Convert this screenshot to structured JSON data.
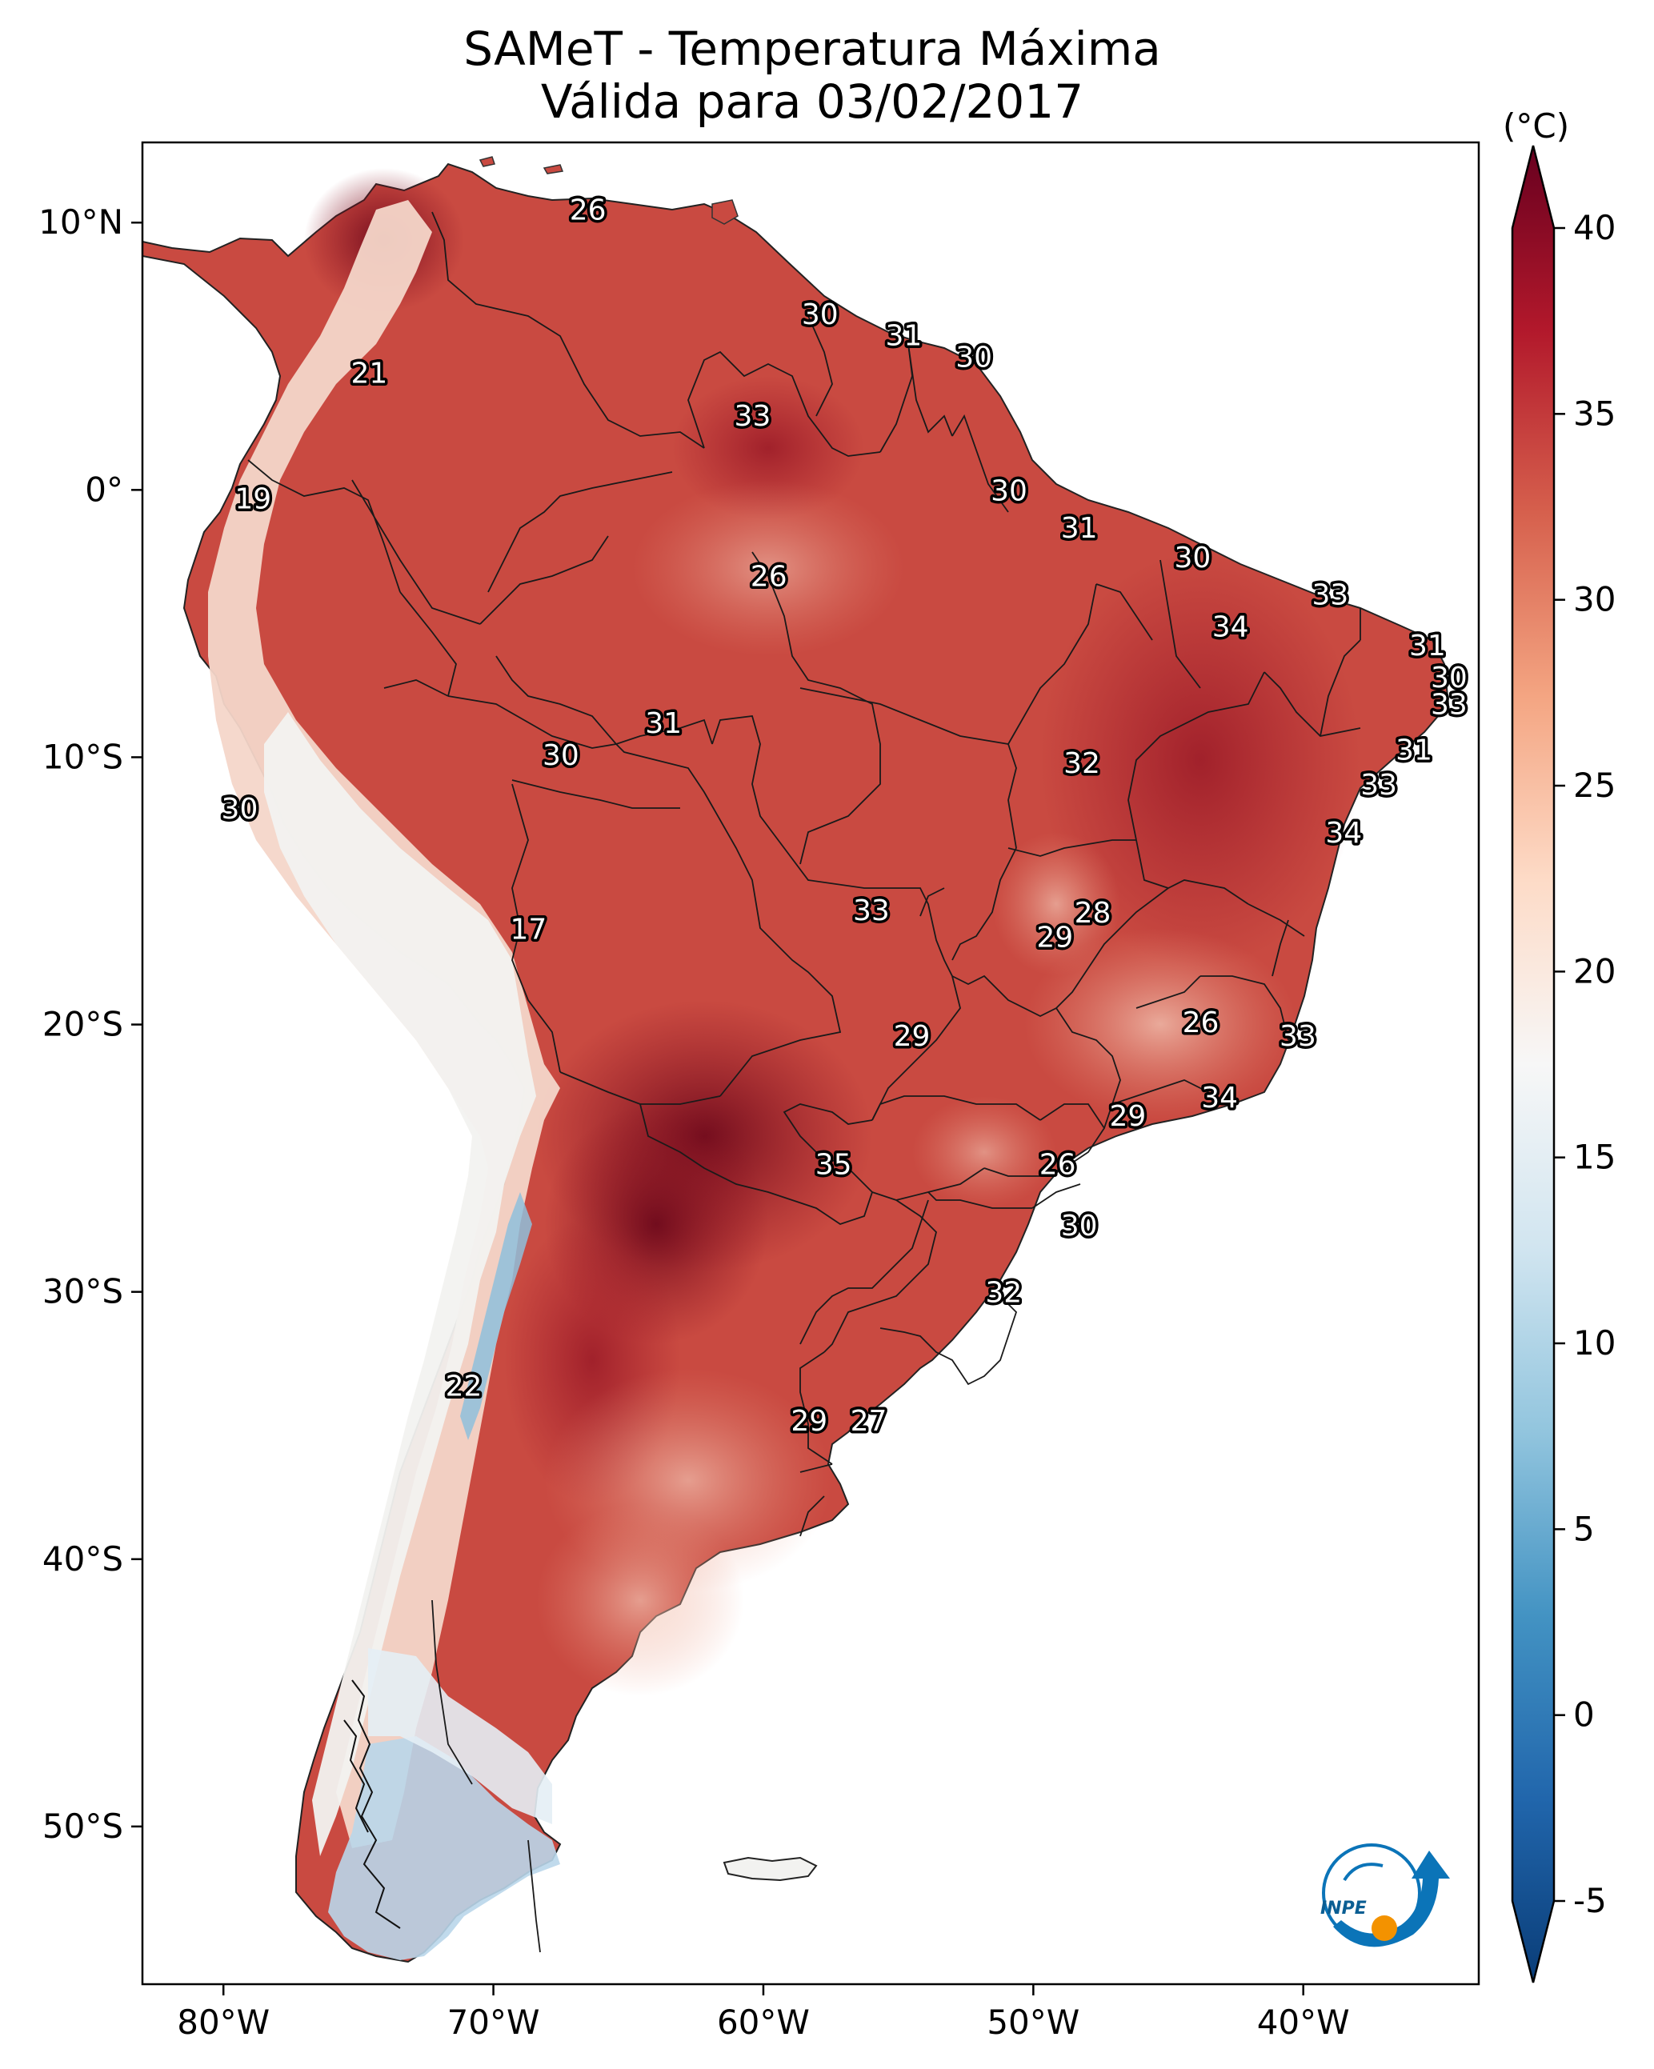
{
  "title": {
    "line1": "SAMeT - Temperatura Máxima",
    "line2": "Válida para 03/02/2017"
  },
  "axes": {
    "lon_ticks": [
      {
        "lon": -80,
        "label": "80°W"
      },
      {
        "lon": -70,
        "label": "70°W"
      },
      {
        "lon": -60,
        "label": "60°W"
      },
      {
        "lon": -50,
        "label": "50°W"
      },
      {
        "lon": -40,
        "label": "40°W"
      }
    ],
    "lat_ticks": [
      {
        "lat": 10,
        "label": "10°N"
      },
      {
        "lat": 0,
        "label": "0°"
      },
      {
        "lat": -10,
        "label": "10°S"
      },
      {
        "lat": -20,
        "label": "20°S"
      },
      {
        "lat": -30,
        "label": "30°S"
      },
      {
        "lat": -40,
        "label": "40°S"
      },
      {
        "lat": -50,
        "label": "50°S"
      }
    ]
  },
  "colorbar": {
    "unit": "(°C)",
    "ticks": [
      "-5",
      "0",
      "5",
      "10",
      "15",
      "20",
      "25",
      "30",
      "35",
      "40"
    ],
    "min": -5,
    "max": 40,
    "colors": [
      "#0a3d78",
      "#2166ac",
      "#4393c3",
      "#92c5de",
      "#d1e5f0",
      "#f7f7f7",
      "#fddbc7",
      "#f4a582",
      "#d6604d",
      "#b2182b",
      "#67001f"
    ]
  },
  "labels": [
    {
      "text": "26",
      "lon": -66.5,
      "lat": 10.5
    },
    {
      "text": "30",
      "lon": -57.9,
      "lat": 6.6
    },
    {
      "text": "31",
      "lon": -54.8,
      "lat": 5.8
    },
    {
      "text": "30",
      "lon": -52.2,
      "lat": 5.0
    },
    {
      "text": "21",
      "lon": -74.6,
      "lat": 4.4
    },
    {
      "text": "33",
      "lon": -60.4,
      "lat": 2.8
    },
    {
      "text": "19",
      "lon": -78.9,
      "lat": -0.3
    },
    {
      "text": "30",
      "lon": -50.9,
      "lat": 0.0
    },
    {
      "text": "31",
      "lon": -48.3,
      "lat": -1.4
    },
    {
      "text": "26",
      "lon": -59.8,
      "lat": -3.2
    },
    {
      "text": "30",
      "lon": -44.1,
      "lat": -2.5
    },
    {
      "text": "33",
      "lon": -39.0,
      "lat": -3.9
    },
    {
      "text": "34",
      "lon": -42.7,
      "lat": -5.1
    },
    {
      "text": "31",
      "lon": -35.4,
      "lat": -5.8
    },
    {
      "text": "30",
      "lon": -34.6,
      "lat": -7.0
    },
    {
      "text": "33",
      "lon": -34.6,
      "lat": -8.0
    },
    {
      "text": "31",
      "lon": -63.7,
      "lat": -8.7
    },
    {
      "text": "30",
      "lon": -67.5,
      "lat": -9.9
    },
    {
      "text": "31",
      "lon": -35.9,
      "lat": -9.7
    },
    {
      "text": "32",
      "lon": -48.2,
      "lat": -10.2
    },
    {
      "text": "33",
      "lon": -37.2,
      "lat": -11.0
    },
    {
      "text": "30",
      "lon": -79.4,
      "lat": -11.9
    },
    {
      "text": "34",
      "lon": -38.5,
      "lat": -12.8
    },
    {
      "text": "33",
      "lon": -56.0,
      "lat": -15.7
    },
    {
      "text": "28",
      "lon": -47.8,
      "lat": -15.8
    },
    {
      "text": "29",
      "lon": -49.2,
      "lat": -16.7
    },
    {
      "text": "17",
      "lon": -68.7,
      "lat": -16.4
    },
    {
      "text": "26",
      "lon": -43.8,
      "lat": -19.9
    },
    {
      "text": "33",
      "lon": -40.2,
      "lat": -20.4
    },
    {
      "text": "29",
      "lon": -54.5,
      "lat": -20.4
    },
    {
      "text": "34",
      "lon": -43.1,
      "lat": -22.7
    },
    {
      "text": "29",
      "lon": -46.5,
      "lat": -23.4
    },
    {
      "text": "35",
      "lon": -57.4,
      "lat": -25.2
    },
    {
      "text": "26",
      "lon": -49.1,
      "lat": -25.2
    },
    {
      "text": "30",
      "lon": -48.3,
      "lat": -27.5
    },
    {
      "text": "32",
      "lon": -51.1,
      "lat": -30.0
    },
    {
      "text": "22",
      "lon": -71.1,
      "lat": -33.5
    },
    {
      "text": "29",
      "lon": -58.3,
      "lat": -34.8
    },
    {
      "text": "27",
      "lon": -56.1,
      "lat": -34.8
    }
  ],
  "logo": {
    "text": "INPE"
  }
}
